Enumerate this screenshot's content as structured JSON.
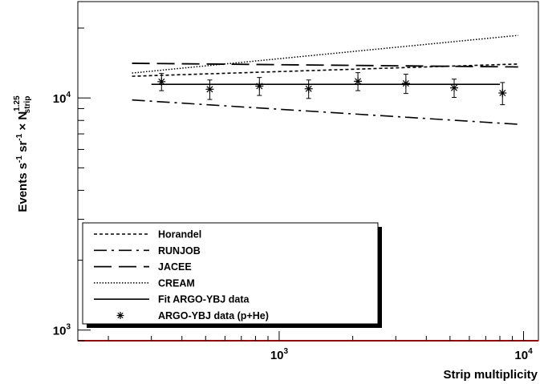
{
  "chart_data": {
    "type": "line",
    "xscale": "log",
    "yscale": "log",
    "xlim": [
      150,
      11500
    ],
    "ylim": [
      900,
      26000
    ],
    "xlabel": "Strip  multiplicity",
    "ylabel": {
      "main": "Events s",
      "sup1": "-1",
      "mid1": " sr",
      "sup2": "-1",
      "mid2": " × N",
      "sub": "strip",
      "sup3": "1.25"
    },
    "x_ticks": [
      {
        "value": 1000,
        "base": "10",
        "exp": "3"
      },
      {
        "value": 10000,
        "base": "10",
        "exp": "4"
      }
    ],
    "y_ticks": [
      {
        "value": 1000,
        "base": "10",
        "exp": "3"
      },
      {
        "value": 10000,
        "base": "10",
        "exp": "4"
      }
    ],
    "grid": false,
    "legend_position": "bottom-left",
    "series": [
      {
        "name": "Horandel",
        "style": "dashed-short",
        "x": [
          250,
          9500
        ],
        "y": [
          12400,
          14000
        ]
      },
      {
        "name": "RUNJOB",
        "style": "dash-dot",
        "x": [
          250,
          9500
        ],
        "y": [
          9800,
          7700
        ]
      },
      {
        "name": "JACEE",
        "style": "dashed-long",
        "x": [
          250,
          9500
        ],
        "y": [
          14100,
          13600
        ]
      },
      {
        "name": "CREAM",
        "style": "dotted",
        "x": [
          250,
          9500
        ],
        "y": [
          12800,
          18600
        ]
      },
      {
        "name": "Fit ARGO-YBJ data",
        "style": "solid",
        "x": [
          300,
          8000
        ],
        "y": [
          11450,
          11450
        ]
      }
    ],
    "data_series": {
      "name": "ARGO-YBJ data (p+He)",
      "marker": "asterisk",
      "points": [
        {
          "x": 330,
          "y": 11750,
          "err": 1000
        },
        {
          "x": 520,
          "y": 10900,
          "err": 1050
        },
        {
          "x": 830,
          "y": 11250,
          "err": 1000
        },
        {
          "x": 1320,
          "y": 10950,
          "err": 1000
        },
        {
          "x": 2100,
          "y": 11800,
          "err": 1050
        },
        {
          "x": 3300,
          "y": 11550,
          "err": 1100
        },
        {
          "x": 5200,
          "y": 11050,
          "err": 1000
        },
        {
          "x": 8200,
          "y": 10500,
          "err": 1150
        }
      ]
    }
  }
}
